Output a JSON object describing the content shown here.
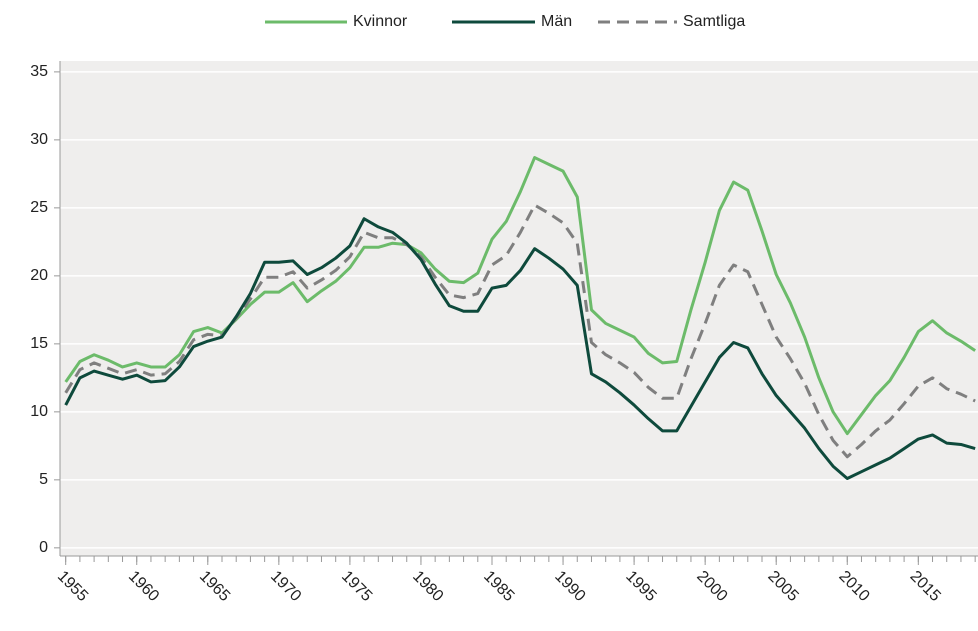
{
  "chart_data": {
    "type": "line",
    "x": [
      1955,
      1956,
      1957,
      1958,
      1959,
      1960,
      1961,
      1962,
      1963,
      1964,
      1965,
      1966,
      1967,
      1968,
      1969,
      1970,
      1971,
      1972,
      1973,
      1974,
      1975,
      1976,
      1977,
      1978,
      1979,
      1980,
      1981,
      1982,
      1983,
      1984,
      1985,
      1986,
      1987,
      1988,
      1989,
      1990,
      1991,
      1992,
      1993,
      1994,
      1995,
      1996,
      1997,
      1998,
      1999,
      2000,
      2001,
      2002,
      2003,
      2004,
      2005,
      2006,
      2007,
      2008,
      2009,
      2010,
      2011,
      2012,
      2013,
      2014,
      2015,
      2016,
      2017,
      2018,
      2019
    ],
    "series": [
      {
        "name": "Kvinnor",
        "color": "#6cbb6a",
        "dash": false,
        "values": [
          12.2,
          13.7,
          14.2,
          13.8,
          13.3,
          13.6,
          13.3,
          13.3,
          14.2,
          15.9,
          16.2,
          15.8,
          16.8,
          17.9,
          18.8,
          18.8,
          19.5,
          18.1,
          18.9,
          19.6,
          20.6,
          22.1,
          22.1,
          22.4,
          22.3,
          21.7,
          20.5,
          19.6,
          19.5,
          20.2,
          22.7,
          24.0,
          26.2,
          28.7,
          28.2,
          27.7,
          25.8,
          17.5,
          16.5,
          16.0,
          15.5,
          14.3,
          13.6,
          13.7,
          17.5,
          21.0,
          24.8,
          26.9,
          26.3,
          23.3,
          20.1,
          18.0,
          15.5,
          12.5,
          10.0,
          8.4,
          9.8,
          11.2,
          12.3,
          14.0,
          15.9,
          16.7,
          15.8,
          15.2,
          14.5
        ]
      },
      {
        "name": "Män",
        "color": "#0e4a3c",
        "dash": false,
        "values": [
          10.5,
          12.5,
          13.0,
          12.7,
          12.4,
          12.7,
          12.2,
          12.3,
          13.3,
          14.8,
          15.2,
          15.5,
          17.0,
          18.7,
          21.0,
          21.0,
          21.1,
          20.1,
          20.6,
          21.3,
          22.2,
          24.2,
          23.6,
          23.2,
          22.4,
          21.2,
          19.4,
          17.8,
          17.4,
          17.4,
          19.1,
          19.3,
          20.4,
          22.0,
          21.3,
          20.5,
          19.3,
          12.8,
          12.2,
          11.4,
          10.5,
          9.5,
          8.6,
          8.6,
          10.4,
          12.2,
          14.0,
          15.1,
          14.7,
          12.8,
          11.2,
          10.0,
          8.8,
          7.3,
          6.0,
          5.1,
          5.6,
          6.1,
          6.6,
          7.3,
          8.0,
          8.3,
          7.7,
          7.6,
          7.3
        ]
      },
      {
        "name": "Samtliga",
        "color": "#7f7f7f",
        "dash": true,
        "values": [
          11.4,
          13.1,
          13.6,
          13.2,
          12.8,
          13.1,
          12.7,
          12.8,
          13.7,
          15.3,
          15.7,
          15.6,
          16.9,
          18.3,
          19.9,
          19.9,
          20.3,
          19.1,
          19.7,
          20.4,
          21.4,
          23.2,
          22.8,
          22.8,
          22.3,
          21.4,
          19.9,
          18.6,
          18.4,
          18.7,
          20.8,
          21.5,
          23.2,
          25.2,
          24.6,
          23.9,
          22.4,
          15.1,
          14.2,
          13.6,
          12.9,
          11.8,
          11.0,
          11.0,
          13.9,
          16.5,
          19.3,
          20.8,
          20.3,
          17.9,
          15.5,
          13.9,
          12.1,
          9.8,
          7.9,
          6.7,
          7.6,
          8.6,
          9.4,
          10.6,
          11.9,
          12.5,
          11.7,
          11.3,
          10.8
        ]
      }
    ],
    "xlim": [
      1954.6,
      2019.2
    ],
    "xticks": [
      1955,
      1960,
      1965,
      1970,
      1975,
      1980,
      1985,
      1990,
      1995,
      2000,
      2005,
      2010,
      2015
    ],
    "ylim": [
      -0.6,
      35.8
    ],
    "yticks": [
      0,
      5,
      10,
      15,
      20,
      25,
      30,
      35
    ],
    "grid": true
  }
}
